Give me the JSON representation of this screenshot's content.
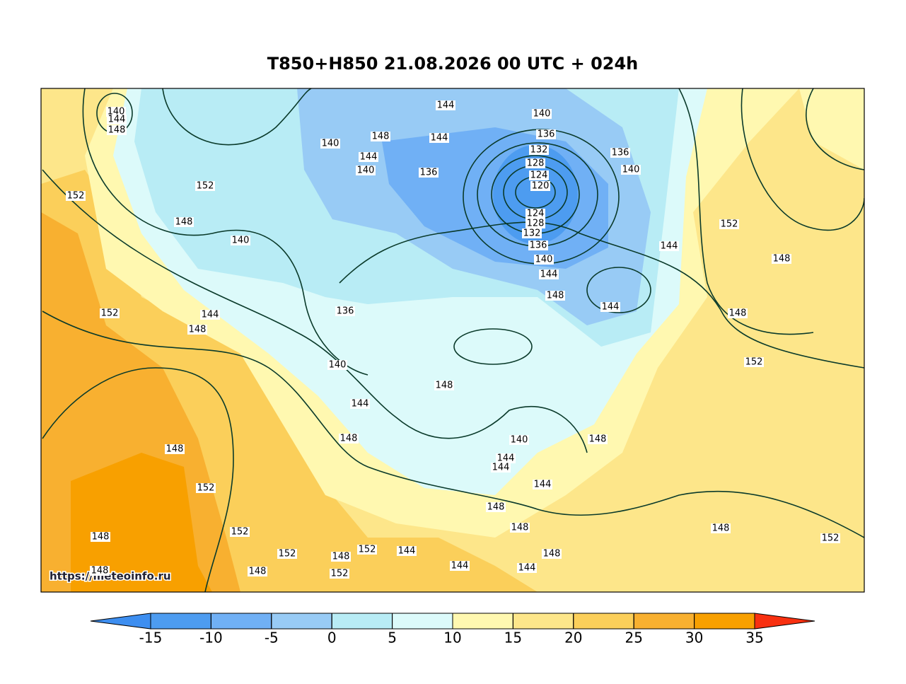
{
  "title": "T850+H850 21.08.2026 00 UTC + 024h",
  "watermark": "https://meteoinfo.ru",
  "colorbar": {
    "ticks": [
      -15,
      -10,
      -5,
      0,
      5,
      10,
      15,
      20,
      25,
      30,
      35
    ],
    "colors": [
      "#3d8ef0",
      "#4d9cf0",
      "#70b0f5",
      "#98cbf5",
      "#b8ecf5",
      "#dcfafa",
      "#fff8b0",
      "#fde68a",
      "#fbcf5a",
      "#f8b030",
      "#f8a000",
      "#f8661a",
      "#f83010"
    ]
  },
  "contour_labels": [
    140,
    144,
    148,
    152,
    152,
    148,
    140,
    152,
    144,
    148,
    140,
    144,
    140,
    148,
    144,
    144,
    136,
    140,
    136,
    132,
    128,
    124,
    120,
    124,
    128,
    132,
    136,
    140,
    144,
    148,
    136,
    140,
    152,
    148,
    144,
    144,
    148,
    152,
    136,
    140,
    148,
    144,
    148,
    148,
    140,
    144,
    144,
    144,
    148,
    148,
    148,
    152,
    148,
    152,
    152,
    148,
    152,
    144,
    148,
    144,
    144,
    148,
    152,
    148,
    152,
    148
  ]
}
